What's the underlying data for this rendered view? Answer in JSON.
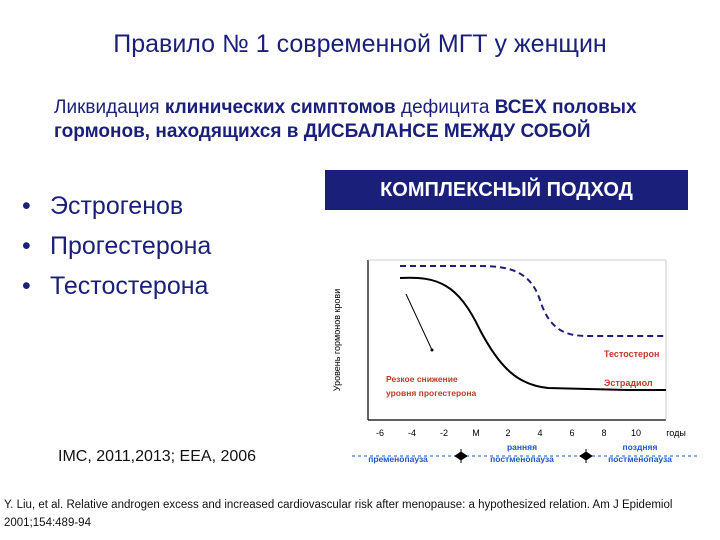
{
  "slide": {
    "title": "Правило № 1 современной МГТ у женщин",
    "intro": {
      "part1": "Ликвидация ",
      "part2": "клинических симптомов",
      "part3": " дефицита ",
      "part4": "ВСЕХ половых гормонов, находящихся в ДИСБАЛАНСЕ МЕЖДУ СОБОЙ"
    },
    "banner": "КОМПЛЕКСНЫЙ ПОДХОД",
    "bullets": [
      "Эстрогенов",
      "Прогестерона",
      "Тестостерона"
    ],
    "refs": "IMC, 2011,2013;  EEA, 2006",
    "footnote": "Y. Liu, et al. Relative androgen excess and increased cardiovascular risk after menopause: a hypothesized relation.  Am J Epidemiol 2001;154:489-94"
  },
  "chart_data": {
    "type": "line",
    "ylabel": "Уровень гормонов крови",
    "x_ticks": [
      "-6",
      "-4",
      "-2",
      "М",
      "2",
      "4",
      "6",
      "8",
      "10",
      "годы"
    ],
    "series": [
      {
        "name": "Тестостерон",
        "style": "dashed",
        "color": "#1a1f7a"
      },
      {
        "name": "Эстрадиол",
        "style": "solid",
        "color": "#000000"
      }
    ],
    "annotation": {
      "text_line1": "Резкое снижение",
      "text_line2": "уровня прогестерона",
      "color": "#c0392b"
    },
    "phases": [
      {
        "text_line1": "пременопауза",
        "text_line2": ""
      },
      {
        "text_line1": "ранняя",
        "text_line2": "постменопауза"
      },
      {
        "text_line1": "поздняя",
        "text_line2": "постменопауза"
      }
    ],
    "colors": {
      "label": "#c0392b",
      "phase": "#1a57c8",
      "axis": "#000000",
      "grid": "#bbbbbb"
    }
  }
}
